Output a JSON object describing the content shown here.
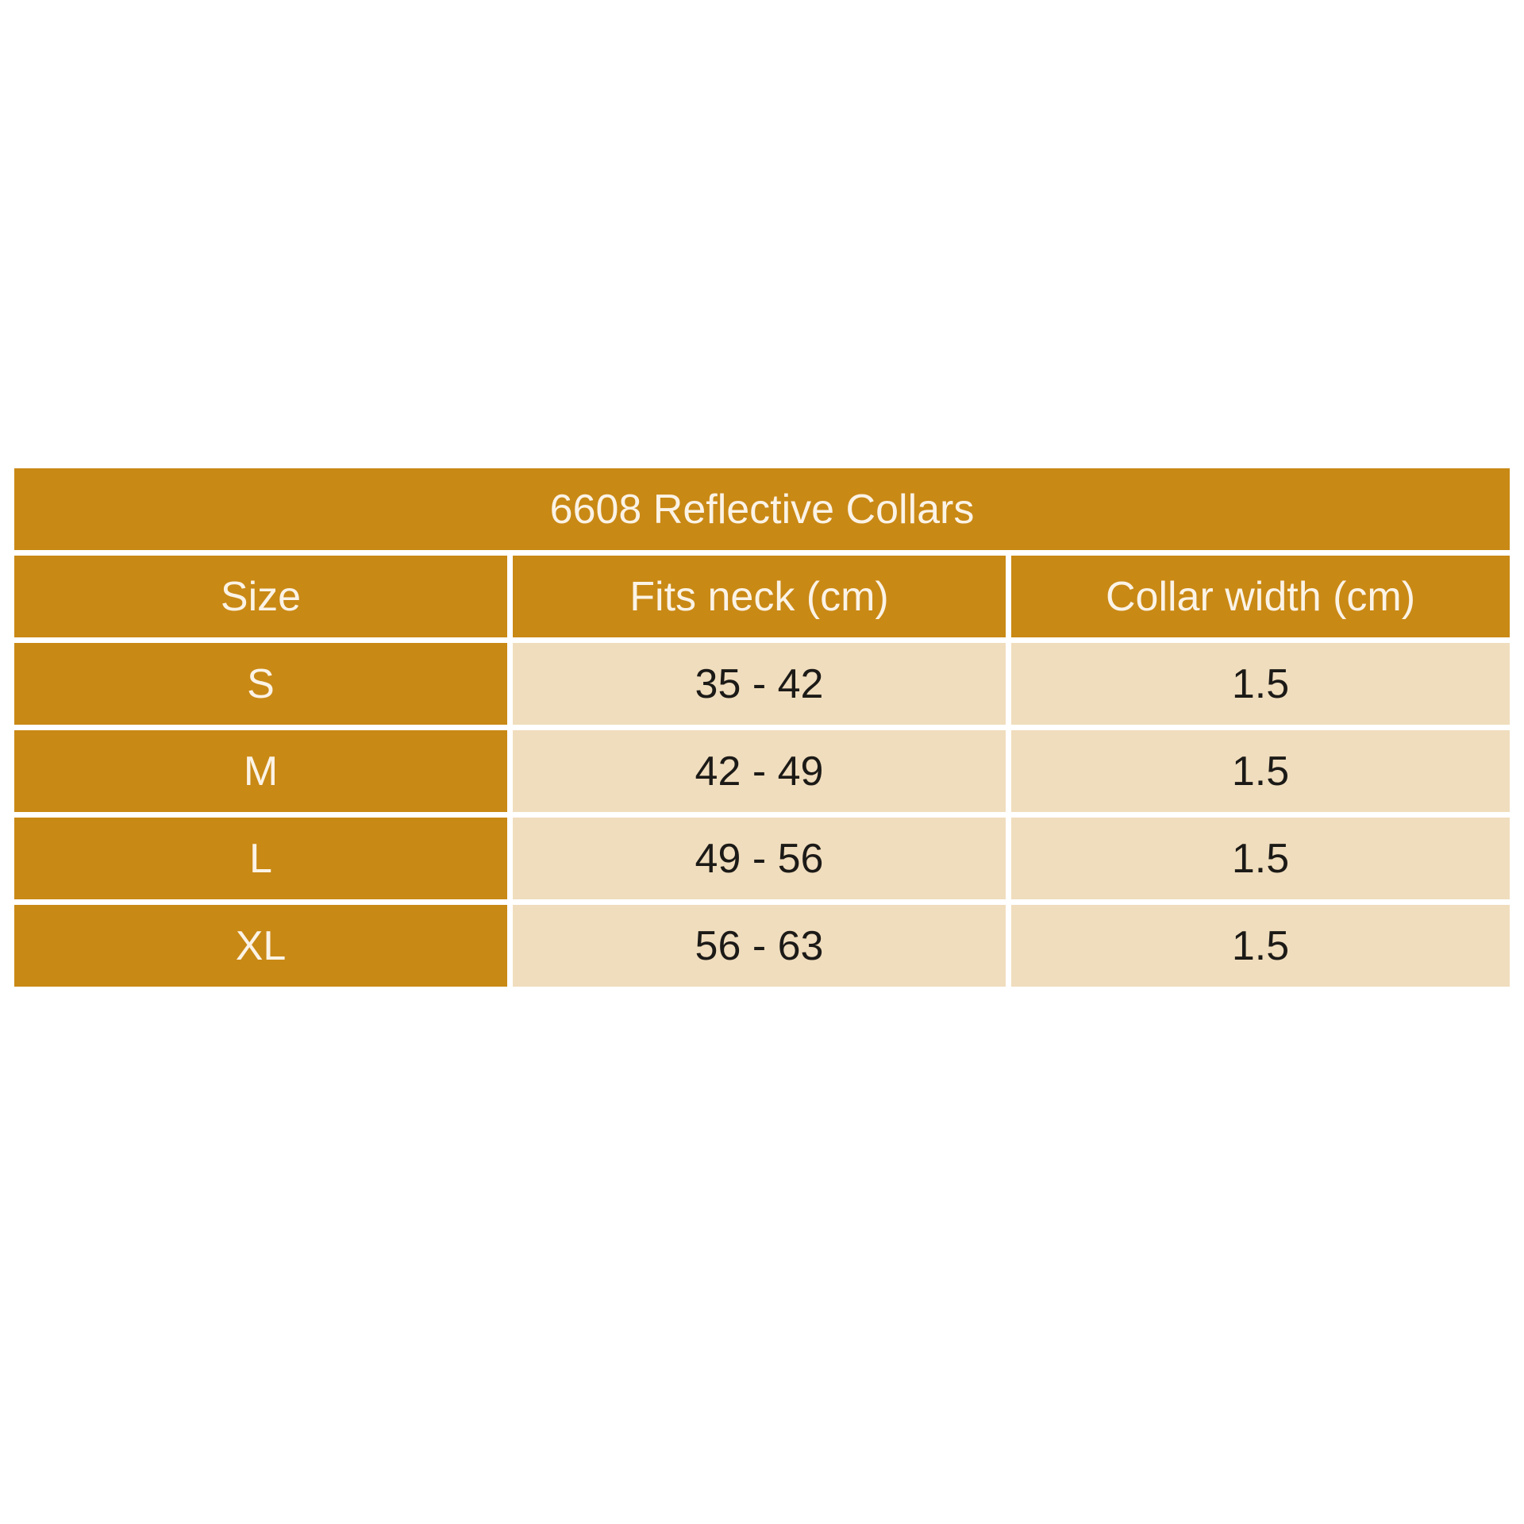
{
  "table": {
    "title": "6608 Reflective Collars",
    "headers": [
      "Size",
      "Fits neck (cm)",
      "Collar width (cm)"
    ],
    "rows": [
      {
        "size": "S",
        "fits_neck": "35 - 42",
        "collar_width": "1.5"
      },
      {
        "size": "M",
        "fits_neck": "42 - 49",
        "collar_width": "1.5"
      },
      {
        "size": "L",
        "fits_neck": "49 - 56",
        "collar_width": "1.5"
      },
      {
        "size": "XL",
        "fits_neck": "56 - 63",
        "collar_width": "1.5"
      }
    ]
  },
  "colors": {
    "header_background": "#c98915",
    "header_text": "#fbf3e6",
    "cell_background": "#f0ddbd",
    "cell_text": "#1c1a17",
    "page_background": "#ffffff"
  }
}
